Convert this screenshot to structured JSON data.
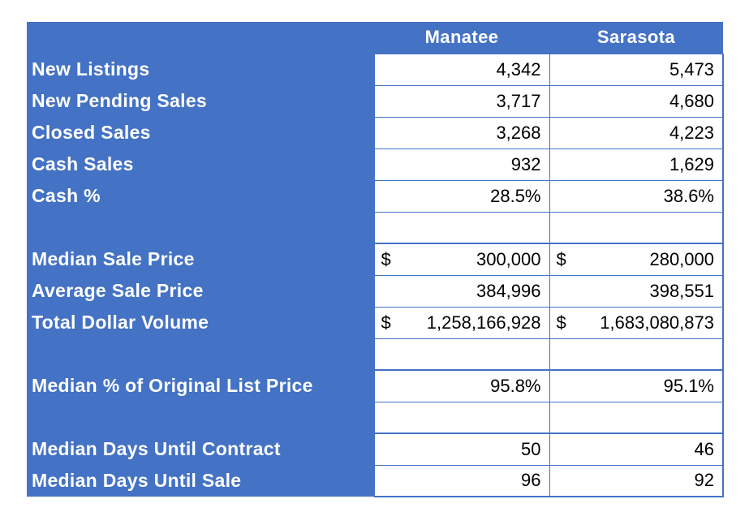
{
  "colors": {
    "accent_blue": "#4472C4",
    "border_blue": "#4472C4",
    "cell_background": "#FFFFFF",
    "cell_text": "#000000",
    "label_text": "#FFFFFF"
  },
  "table": {
    "columns": [
      "Manatee",
      "Sarasota"
    ],
    "currency_symbol": "$",
    "rows": [
      {
        "label": "New Listings",
        "values": [
          "4,342",
          "5,473"
        ]
      },
      {
        "label": "New Pending Sales",
        "values": [
          "3,717",
          "4,680"
        ]
      },
      {
        "label": "Closed Sales",
        "values": [
          "3,268",
          "4,223"
        ]
      },
      {
        "label": "Cash Sales",
        "values": [
          "932",
          "1,629"
        ]
      },
      {
        "label": "Cash %",
        "values": [
          "28.5%",
          "38.6%"
        ]
      },
      {
        "label": "",
        "blank": true,
        "values": [
          "",
          ""
        ]
      },
      {
        "label": "Median Sale Price",
        "currency": true,
        "section_start": true,
        "values": [
          "300,000",
          "280,000"
        ]
      },
      {
        "label": "Average Sale Price",
        "values": [
          "384,996",
          "398,551"
        ]
      },
      {
        "label": "Total Dollar Volume",
        "currency": true,
        "values": [
          "1,258,166,928",
          "1,683,080,873"
        ]
      },
      {
        "label": "",
        "blank": true,
        "values": [
          "",
          ""
        ]
      },
      {
        "label": "Median % of Original List Price",
        "section_start": true,
        "values": [
          "95.8%",
          "95.1%"
        ]
      },
      {
        "label": "",
        "blank": true,
        "values": [
          "",
          ""
        ]
      },
      {
        "label": "Median Days Until Contract",
        "section_start": true,
        "values": [
          "50",
          "46"
        ]
      },
      {
        "label": "Median Days Until Sale",
        "values": [
          "96",
          "92"
        ]
      }
    ]
  },
  "chart_data": {
    "type": "table",
    "title": "",
    "columns": [
      "",
      "Manatee",
      "Sarasota"
    ],
    "rows": [
      [
        "New Listings",
        4342,
        5473
      ],
      [
        "New Pending Sales",
        3717,
        4680
      ],
      [
        "Closed Sales",
        3268,
        4223
      ],
      [
        "Cash Sales",
        932,
        1629
      ],
      [
        "Cash %",
        "28.5%",
        "38.6%"
      ],
      [
        "Median Sale Price",
        "$300,000",
        "$280,000"
      ],
      [
        "Average Sale Price",
        384996,
        398551
      ],
      [
        "Total Dollar Volume",
        "$1,258,166,928",
        "$1,683,080,873"
      ],
      [
        "Median % of Original List Price",
        "95.8%",
        "95.1%"
      ],
      [
        "Median Days Until Contract",
        50,
        46
      ],
      [
        "Median Days Until Sale",
        96,
        92
      ]
    ]
  }
}
